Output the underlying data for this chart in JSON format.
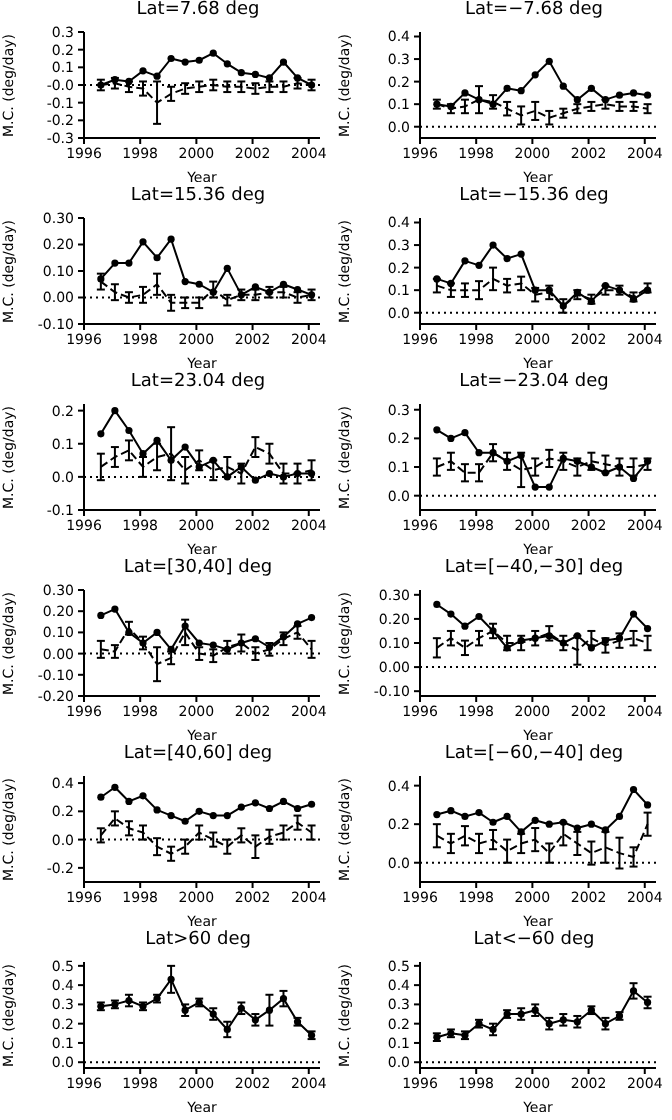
{
  "chart_data": [
    {
      "type": "line",
      "title": "Lat=7.68 deg",
      "xlabel": "Year",
      "ylabel": "M.C. (deg/day)",
      "xlim": [
        1996,
        2004.4
      ],
      "xticks": [
        1996,
        1998,
        2000,
        2002,
        2004
      ],
      "ylim": [
        -0.3,
        0.3
      ],
      "yticks": [
        0.3,
        0.2,
        0.1,
        {
          "value": 0,
          "label": "-0.0"
        },
        -0.1,
        -0.2,
        -0.3
      ],
      "ref_lines": [
        {
          "axis": "y",
          "value": 0,
          "line_style": "dotted"
        }
      ],
      "x": [
        1996.6,
        1997.1,
        1997.6,
        1998.1,
        1998.6,
        1999.1,
        1999.6,
        2000.1,
        2000.6,
        2001.1,
        2001.6,
        2002.1,
        2002.6,
        2003.1,
        2003.6,
        2004.1
      ],
      "series": [
        {
          "color": "#000000",
          "marker": "circle",
          "line_style": "solid",
          "values": [
            0.0,
            0.03,
            0.02,
            0.08,
            0.05,
            0.15,
            0.13,
            0.14,
            0.18,
            0.12,
            0.07,
            0.06,
            0.04,
            0.13,
            0.04,
            0.0
          ]
        },
        {
          "color": "#000000",
          "marker": "none",
          "line_style": "dashed",
          "values": [
            0.0,
            0.01,
            -0.01,
            -0.02,
            -0.1,
            -0.05,
            -0.02,
            -0.01,
            0.0,
            -0.01,
            -0.01,
            -0.02,
            -0.01,
            -0.01,
            0.01,
            0.0
          ],
          "errors": [
            0.03,
            0.03,
            0.03,
            0.04,
            0.12,
            0.04,
            0.03,
            0.03,
            0.03,
            0.03,
            0.03,
            0.03,
            0.03,
            0.03,
            0.03,
            0.03
          ]
        }
      ]
    },
    {
      "type": "line",
      "title": "Lat=−7.68 deg",
      "xlabel": "Year",
      "ylabel": "M.C. (deg/day)",
      "xlim": [
        1996,
        2004.4
      ],
      "xticks": [
        1996,
        1998,
        2000,
        2002,
        2004
      ],
      "ylim": [
        -0.05,
        0.42
      ],
      "yticks": [
        {
          "value": 0,
          "label": "0.0"
        },
        0.1,
        0.2,
        0.3,
        0.4
      ],
      "ref_lines": [
        {
          "axis": "y",
          "value": 0,
          "line_style": "dotted"
        }
      ],
      "x": [
        1996.6,
        1997.1,
        1997.6,
        1998.1,
        1998.6,
        1999.1,
        1999.6,
        2000.1,
        2000.6,
        2001.1,
        2001.6,
        2002.1,
        2002.6,
        2003.1,
        2003.6,
        2004.1
      ],
      "series": [
        {
          "color": "#000000",
          "marker": "circle",
          "line_style": "solid",
          "values": [
            0.1,
            0.09,
            0.15,
            0.12,
            0.1,
            0.17,
            0.16,
            0.23,
            0.29,
            0.18,
            0.12,
            0.17,
            0.12,
            0.14,
            0.15,
            0.14
          ]
        },
        {
          "color": "#000000",
          "marker": "none",
          "line_style": "dashed",
          "values": [
            0.1,
            0.08,
            0.09,
            0.12,
            0.11,
            0.08,
            0.05,
            0.07,
            0.04,
            0.06,
            0.08,
            0.09,
            0.1,
            0.09,
            0.09,
            0.08
          ],
          "errors": [
            0.02,
            0.02,
            0.03,
            0.06,
            0.03,
            0.03,
            0.04,
            0.04,
            0.03,
            0.02,
            0.02,
            0.02,
            0.02,
            0.02,
            0.02,
            0.02
          ]
        }
      ]
    },
    {
      "type": "line",
      "title": "Lat=15.36 deg",
      "xlabel": "Year",
      "ylabel": "M.C. (deg/day)",
      "xlim": [
        1996,
        2004.4
      ],
      "xticks": [
        1996,
        1998,
        2000,
        2002,
        2004
      ],
      "ylim": [
        -0.1,
        0.3
      ],
      "yticks": [
        {
          "value": -0.1,
          "label": "-0.10"
        },
        {
          "value": 0,
          "label": "0.00"
        },
        {
          "value": 0.1,
          "label": "0.10"
        },
        {
          "value": 0.2,
          "label": "0.20"
        },
        {
          "value": 0.3,
          "label": "0.30"
        }
      ],
      "ref_lines": [
        {
          "axis": "y",
          "value": 0,
          "line_style": "dotted"
        }
      ],
      "x": [
        1996.6,
        1997.1,
        1997.6,
        1998.1,
        1998.6,
        1999.1,
        1999.6,
        2000.1,
        2000.6,
        2001.1,
        2001.6,
        2002.1,
        2002.6,
        2003.1,
        2003.6,
        2004.1
      ],
      "series": [
        {
          "color": "#000000",
          "marker": "circle",
          "line_style": "solid",
          "values": [
            0.07,
            0.13,
            0.13,
            0.21,
            0.15,
            0.22,
            0.06,
            0.05,
            0.02,
            0.11,
            0.01,
            0.04,
            0.02,
            0.05,
            0.03,
            0.01
          ]
        },
        {
          "color": "#000000",
          "marker": "none",
          "line_style": "dashed",
          "values": [
            0.06,
            0.02,
            0.0,
            0.01,
            0.05,
            -0.02,
            -0.02,
            -0.02,
            0.03,
            -0.01,
            0.01,
            0.01,
            0.02,
            0.02,
            0.0,
            0.01
          ],
          "errors": [
            0.03,
            0.03,
            0.02,
            0.03,
            0.04,
            0.03,
            0.02,
            0.02,
            0.03,
            0.02,
            0.02,
            0.02,
            0.02,
            0.02,
            0.02,
            0.02
          ]
        }
      ]
    },
    {
      "type": "line",
      "title": "Lat=−15.36 deg",
      "xlabel": "Year",
      "ylabel": "M.C. (deg/day)",
      "xlim": [
        1996,
        2004.4
      ],
      "xticks": [
        1996,
        1998,
        2000,
        2002,
        2004
      ],
      "ylim": [
        -0.05,
        0.42
      ],
      "yticks": [
        {
          "value": 0,
          "label": "0.0"
        },
        0.1,
        0.2,
        0.3,
        0.4
      ],
      "ref_lines": [
        {
          "axis": "y",
          "value": 0,
          "line_style": "dotted"
        }
      ],
      "x": [
        1996.6,
        1997.1,
        1997.6,
        1998.1,
        1998.6,
        1999.1,
        1999.6,
        2000.1,
        2000.6,
        2001.1,
        2001.6,
        2002.1,
        2002.6,
        2003.1,
        2003.6,
        2004.1
      ],
      "series": [
        {
          "color": "#000000",
          "marker": "circle",
          "line_style": "solid",
          "values": [
            0.15,
            0.13,
            0.23,
            0.21,
            0.3,
            0.24,
            0.26,
            0.1,
            0.1,
            0.03,
            0.09,
            0.05,
            0.12,
            0.1,
            0.06,
            0.1
          ]
        },
        {
          "color": "#000000",
          "marker": "none",
          "line_style": "dashed",
          "values": [
            0.12,
            0.1,
            0.1,
            0.1,
            0.15,
            0.12,
            0.13,
            0.08,
            0.09,
            0.03,
            0.08,
            0.06,
            0.1,
            0.1,
            0.07,
            0.11
          ],
          "errors": [
            0.03,
            0.03,
            0.03,
            0.04,
            0.05,
            0.03,
            0.03,
            0.03,
            0.03,
            0.03,
            0.02,
            0.02,
            0.02,
            0.02,
            0.02,
            0.02
          ]
        }
      ]
    },
    {
      "type": "line",
      "title": "Lat=23.04 deg",
      "xlabel": "Year",
      "ylabel": "M.C. (deg/day)",
      "xlim": [
        1996,
        2004.4
      ],
      "xticks": [
        1996,
        1998,
        2000,
        2002,
        2004
      ],
      "ylim": [
        -0.1,
        0.22
      ],
      "yticks": [
        -0.1,
        {
          "value": 0,
          "label": "0.0"
        },
        0.1,
        0.2
      ],
      "ref_lines": [
        {
          "axis": "y",
          "value": 0,
          "line_style": "dotted"
        }
      ],
      "x": [
        1996.6,
        1997.1,
        1997.6,
        1998.1,
        1998.6,
        1999.1,
        1999.6,
        2000.1,
        2000.6,
        2001.1,
        2001.6,
        2002.1,
        2002.6,
        2003.1,
        2003.6,
        2004.1
      ],
      "series": [
        {
          "color": "#000000",
          "marker": "circle",
          "line_style": "solid",
          "values": [
            0.13,
            0.2,
            0.14,
            0.07,
            0.11,
            0.05,
            0.09,
            0.03,
            0.05,
            0.0,
            0.03,
            -0.01,
            0.01,
            0.0,
            0.01,
            0.01
          ]
        },
        {
          "color": "#000000",
          "marker": "none",
          "line_style": "dashed",
          "values": [
            0.03,
            0.06,
            0.08,
            0.03,
            0.06,
            0.07,
            0.02,
            0.05,
            0.02,
            0.03,
            0.01,
            0.09,
            0.07,
            0.01,
            0.01,
            0.02
          ],
          "errors": [
            0.04,
            0.03,
            0.03,
            0.03,
            0.04,
            0.08,
            0.04,
            0.03,
            0.03,
            0.03,
            0.03,
            0.03,
            0.03,
            0.03,
            0.03,
            0.03
          ]
        }
      ]
    },
    {
      "type": "line",
      "title": "Lat=−23.04 deg",
      "xlabel": "Year",
      "ylabel": "M.C. (deg/day)",
      "xlim": [
        1996,
        2004.4
      ],
      "xticks": [
        1996,
        1998,
        2000,
        2002,
        2004
      ],
      "ylim": [
        -0.05,
        0.32
      ],
      "yticks": [
        {
          "value": 0,
          "label": "0.0"
        },
        0.1,
        0.2,
        0.3
      ],
      "ref_lines": [
        {
          "axis": "y",
          "value": 0,
          "line_style": "dotted"
        }
      ],
      "x": [
        1996.6,
        1997.1,
        1997.6,
        1998.1,
        1998.6,
        1999.1,
        1999.6,
        2000.1,
        2000.6,
        2001.1,
        2001.6,
        2002.1,
        2002.6,
        2003.1,
        2003.6,
        2004.1
      ],
      "series": [
        {
          "color": "#000000",
          "marker": "circle",
          "line_style": "solid",
          "values": [
            0.23,
            0.2,
            0.22,
            0.15,
            0.15,
            0.12,
            0.14,
            0.03,
            0.03,
            0.13,
            0.12,
            0.1,
            0.08,
            0.1,
            0.06,
            0.12
          ]
        },
        {
          "color": "#000000",
          "marker": "none",
          "line_style": "dashed",
          "values": [
            0.1,
            0.12,
            0.08,
            0.08,
            0.15,
            0.12,
            0.09,
            0.1,
            0.13,
            0.12,
            0.1,
            0.12,
            0.11,
            0.1,
            0.1,
            0.11
          ],
          "errors": [
            0.03,
            0.03,
            0.03,
            0.03,
            0.03,
            0.03,
            0.06,
            0.03,
            0.03,
            0.03,
            0.03,
            0.03,
            0.03,
            0.03,
            0.03,
            0.02
          ]
        }
      ]
    },
    {
      "type": "line",
      "title": "Lat=[30,40] deg",
      "xlabel": "Year",
      "ylabel": "M.C. (deg/day)",
      "xlim": [
        1996,
        2004.4
      ],
      "xticks": [
        1996,
        1998,
        2000,
        2002,
        2004
      ],
      "ylim": [
        -0.2,
        0.3
      ],
      "yticks": [
        {
          "value": -0.2,
          "label": "-0.20"
        },
        {
          "value": -0.1,
          "label": "-0.10"
        },
        {
          "value": 0,
          "label": "0.00"
        },
        {
          "value": 0.1,
          "label": "0.10"
        },
        {
          "value": 0.2,
          "label": "0.20"
        },
        {
          "value": 0.3,
          "label": "0.30"
        }
      ],
      "ref_lines": [
        {
          "axis": "y",
          "value": 0,
          "line_style": "dotted"
        }
      ],
      "x": [
        1996.6,
        1997.1,
        1997.6,
        1998.1,
        1998.6,
        1999.1,
        1999.6,
        2000.1,
        2000.6,
        2001.1,
        2001.6,
        2002.1,
        2002.6,
        2003.1,
        2003.6,
        2004.1
      ],
      "series": [
        {
          "color": "#000000",
          "marker": "circle",
          "line_style": "solid",
          "values": [
            0.18,
            0.21,
            0.1,
            0.05,
            0.1,
            0.02,
            0.13,
            0.05,
            0.04,
            0.02,
            0.05,
            0.07,
            0.03,
            0.08,
            0.14,
            0.17
          ]
        },
        {
          "color": "#000000",
          "marker": "none",
          "line_style": "dashed",
          "values": [
            0.02,
            0.01,
            0.12,
            0.05,
            -0.05,
            -0.02,
            0.1,
            0.0,
            -0.01,
            0.03,
            0.05,
            0.0,
            0.02,
            0.07,
            0.1,
            0.02
          ],
          "errors": [
            0.04,
            0.03,
            0.03,
            0.03,
            0.08,
            0.03,
            0.06,
            0.03,
            0.03,
            0.03,
            0.04,
            0.03,
            0.03,
            0.03,
            0.03,
            0.04
          ]
        }
      ]
    },
    {
      "type": "line",
      "title": "Lat=[−40,−30] deg",
      "xlabel": "Year",
      "ylabel": "M.C. (deg/day)",
      "xlim": [
        1996,
        2004.4
      ],
      "xticks": [
        1996,
        1998,
        2000,
        2002,
        2004
      ],
      "ylim": [
        -0.12,
        0.32
      ],
      "yticks": [
        {
          "value": -0.1,
          "label": "-0.10"
        },
        {
          "value": 0,
          "label": "0.00"
        },
        {
          "value": 0.1,
          "label": "0.10"
        },
        {
          "value": 0.2,
          "label": "0.20"
        },
        {
          "value": 0.3,
          "label": "0.30"
        }
      ],
      "ref_lines": [
        {
          "axis": "y",
          "value": 0,
          "line_style": "dotted"
        }
      ],
      "x": [
        1996.6,
        1997.1,
        1997.6,
        1998.1,
        1998.6,
        1999.1,
        1999.6,
        2000.1,
        2000.6,
        2001.1,
        2001.6,
        2002.1,
        2002.6,
        2003.1,
        2003.6,
        2004.1
      ],
      "series": [
        {
          "color": "#000000",
          "marker": "circle",
          "line_style": "solid",
          "values": [
            0.26,
            0.22,
            0.17,
            0.21,
            0.15,
            0.08,
            0.11,
            0.12,
            0.13,
            0.1,
            0.13,
            0.08,
            0.11,
            0.12,
            0.22,
            0.16
          ]
        },
        {
          "color": "#000000",
          "marker": "none",
          "line_style": "dashed",
          "values": [
            0.08,
            0.12,
            0.08,
            0.12,
            0.15,
            0.1,
            0.1,
            0.12,
            0.14,
            0.1,
            0.07,
            0.12,
            0.09,
            0.11,
            0.12,
            0.1
          ],
          "errors": [
            0.04,
            0.03,
            0.03,
            0.03,
            0.03,
            0.03,
            0.03,
            0.03,
            0.03,
            0.03,
            0.06,
            0.03,
            0.03,
            0.03,
            0.03,
            0.03
          ]
        }
      ]
    },
    {
      "type": "line",
      "title": "Lat=[40,60] deg",
      "xlabel": "Year",
      "ylabel": "M.C. (deg/day)",
      "xlim": [
        1996,
        2004.4
      ],
      "xticks": [
        1996,
        1998,
        2000,
        2002,
        2004
      ],
      "ylim": [
        -0.3,
        0.45
      ],
      "yticks": [
        -0.2,
        {
          "value": 0,
          "label": "0.0"
        },
        0.2,
        0.4
      ],
      "ref_lines": [
        {
          "axis": "y",
          "value": 0,
          "line_style": "dotted"
        }
      ],
      "x": [
        1996.6,
        1997.1,
        1997.6,
        1998.1,
        1998.6,
        1999.1,
        1999.6,
        2000.1,
        2000.6,
        2001.1,
        2001.6,
        2002.1,
        2002.6,
        2003.1,
        2003.6,
        2004.1
      ],
      "series": [
        {
          "color": "#000000",
          "marker": "circle",
          "line_style": "solid",
          "values": [
            0.3,
            0.37,
            0.27,
            0.31,
            0.21,
            0.17,
            0.13,
            0.2,
            0.17,
            0.17,
            0.23,
            0.26,
            0.22,
            0.27,
            0.22,
            0.25
          ]
        },
        {
          "color": "#000000",
          "marker": "none",
          "line_style": "dashed",
          "values": [
            0.03,
            0.15,
            0.08,
            0.05,
            -0.05,
            -0.1,
            -0.05,
            0.05,
            0.0,
            -0.05,
            0.03,
            -0.05,
            0.02,
            0.05,
            0.12,
            0.05
          ],
          "errors": [
            0.05,
            0.05,
            0.05,
            0.05,
            0.06,
            0.05,
            0.05,
            0.05,
            0.05,
            0.05,
            0.05,
            0.08,
            0.05,
            0.05,
            0.05,
            0.05
          ]
        }
      ]
    },
    {
      "type": "line",
      "title": "Lat=[−60,−40] deg",
      "xlabel": "Year",
      "ylabel": "M.C. (deg/day)",
      "xlim": [
        1996,
        2004.4
      ],
      "xticks": [
        1996,
        1998,
        2000,
        2002,
        2004
      ],
      "ylim": [
        -0.1,
        0.45
      ],
      "yticks": [
        {
          "value": 0,
          "label": "0.0"
        },
        0.2,
        0.4
      ],
      "ref_lines": [
        {
          "axis": "y",
          "value": 0,
          "line_style": "dotted"
        }
      ],
      "x": [
        1996.6,
        1997.1,
        1997.6,
        1998.1,
        1998.6,
        1999.1,
        1999.6,
        2000.1,
        2000.6,
        2001.1,
        2001.6,
        2002.1,
        2002.6,
        2003.1,
        2003.6,
        2004.1
      ],
      "series": [
        {
          "color": "#000000",
          "marker": "circle",
          "line_style": "solid",
          "values": [
            0.25,
            0.27,
            0.24,
            0.26,
            0.21,
            0.24,
            0.16,
            0.22,
            0.2,
            0.21,
            0.18,
            0.2,
            0.17,
            0.24,
            0.38,
            0.3
          ]
        },
        {
          "color": "#000000",
          "marker": "none",
          "line_style": "dashed",
          "values": [
            0.14,
            0.1,
            0.14,
            0.1,
            0.12,
            0.06,
            0.1,
            0.12,
            0.05,
            0.15,
            0.1,
            0.05,
            0.08,
            0.05,
            0.03,
            0.2
          ],
          "errors": [
            0.06,
            0.05,
            0.05,
            0.05,
            0.05,
            0.06,
            0.05,
            0.06,
            0.05,
            0.06,
            0.06,
            0.06,
            0.08,
            0.08,
            0.05,
            0.06
          ]
        }
      ]
    },
    {
      "type": "line",
      "title": "Lat>60 deg",
      "xlabel": "Year",
      "ylabel": "M.C. (deg/day)",
      "xlim": [
        1996,
        2004.4
      ],
      "xticks": [
        1996,
        1998,
        2000,
        2002,
        2004
      ],
      "ylim": [
        -0.03,
        0.52
      ],
      "yticks": [
        {
          "value": 0,
          "label": "0.0"
        },
        0.1,
        0.2,
        0.3,
        0.4,
        0.5
      ],
      "ref_lines": [
        {
          "axis": "y",
          "value": 0,
          "line_style": "dotted"
        }
      ],
      "x": [
        1996.6,
        1997.1,
        1997.6,
        1998.1,
        1998.6,
        1999.1,
        1999.6,
        2000.1,
        2000.6,
        2001.1,
        2001.6,
        2002.1,
        2002.6,
        2003.1,
        2003.6,
        2004.1
      ],
      "series": [
        {
          "color": "#000000",
          "marker": "circle",
          "line_style": "solid",
          "values": [
            0.29,
            0.3,
            0.32,
            0.29,
            0.33,
            0.43,
            0.27,
            0.31,
            0.25,
            0.17,
            0.28,
            0.22,
            0.27,
            0.33,
            0.21,
            0.14
          ],
          "errors": [
            0.02,
            0.02,
            0.03,
            0.02,
            0.02,
            0.07,
            0.03,
            0.02,
            0.03,
            0.04,
            0.03,
            0.03,
            0.08,
            0.04,
            0.02,
            0.02
          ]
        }
      ]
    },
    {
      "type": "line",
      "title": "Lat<−60 deg",
      "xlabel": "Year",
      "ylabel": "M.C. (deg/day)",
      "xlim": [
        1996,
        2004.4
      ],
      "xticks": [
        1996,
        1998,
        2000,
        2002,
        2004
      ],
      "ylim": [
        -0.03,
        0.52
      ],
      "yticks": [
        {
          "value": 0,
          "label": "0.0"
        },
        0.1,
        0.2,
        0.3,
        0.4,
        0.5
      ],
      "ref_lines": [
        {
          "axis": "y",
          "value": 0,
          "line_style": "dotted"
        }
      ],
      "x": [
        1996.6,
        1997.1,
        1997.6,
        1998.1,
        1998.6,
        1999.1,
        1999.6,
        2000.1,
        2000.6,
        2001.1,
        2001.6,
        2002.1,
        2002.6,
        2003.1,
        2003.6,
        2004.1
      ],
      "series": [
        {
          "color": "#000000",
          "marker": "circle",
          "line_style": "solid",
          "values": [
            0.13,
            0.15,
            0.14,
            0.2,
            0.17,
            0.25,
            0.25,
            0.27,
            0.2,
            0.22,
            0.21,
            0.27,
            0.2,
            0.24,
            0.37,
            0.31
          ],
          "errors": [
            0.02,
            0.02,
            0.02,
            0.02,
            0.03,
            0.02,
            0.03,
            0.03,
            0.03,
            0.03,
            0.03,
            0.02,
            0.03,
            0.02,
            0.04,
            0.03
          ]
        }
      ]
    }
  ]
}
